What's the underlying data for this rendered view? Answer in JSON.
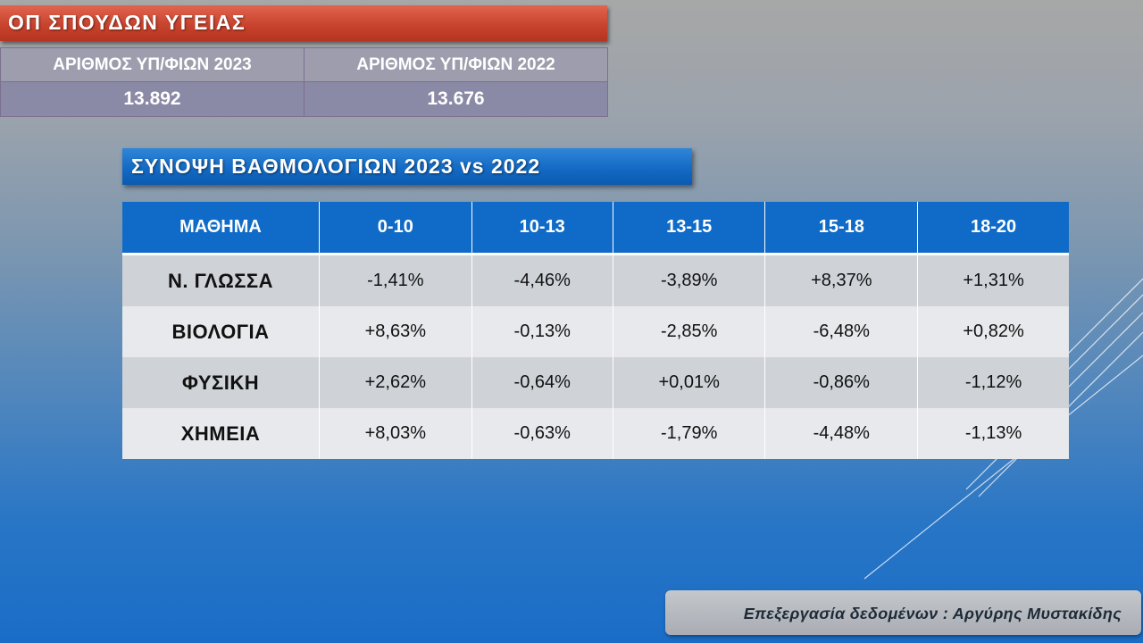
{
  "title": "ΟΠ ΣΠΟΥΔΩΝ ΥΓΕΙΑΣ",
  "stats": {
    "headers": [
      "ΑΡΙΘΜΟΣ ΥΠ/ΦΙΩΝ 2023",
      "ΑΡΙΘΜΟΣ ΥΠ/ΦΙΩΝ 2022"
    ],
    "values": [
      "13.892",
      "13.676"
    ]
  },
  "subtitle": "ΣΥΝΟΨΗ ΒΑΘΜΟΛΟΓΙΩΝ 2023 vs 2022",
  "grades": {
    "headers": [
      "ΜΑΘΗΜΑ",
      "0-10",
      "10-13",
      "13-15",
      "15-18",
      "18-20"
    ],
    "rows": [
      {
        "subject": "Ν. ΓΛΩΣΣΑ",
        "values": [
          "-1,41%",
          "-4,46%",
          "-3,89%",
          "+8,37%",
          "+1,31%"
        ]
      },
      {
        "subject": "ΒΙΟΛΟΓΙΑ",
        "values": [
          "+8,63%",
          "-0,13%",
          "-2,85%",
          "-6,48%",
          "+0,82%"
        ]
      },
      {
        "subject": "ΦΥΣΙΚΗ",
        "values": [
          "+2,62%",
          "-0,64%",
          "+0,01%",
          "-0,86%",
          "-1,12%"
        ]
      },
      {
        "subject": "ΧΗΜΕΙΑ",
        "values": [
          "+8,03%",
          "-0,63%",
          "-1,79%",
          "-4,48%",
          "-1,13%"
        ]
      }
    ]
  },
  "credit": "Επεξεργασία δεδομένων : Αργύρης Μυστακίδης",
  "colors": {
    "title_bar": "#c9432e",
    "subtitle_bar": "#1268c2",
    "table_header": "#0f6bc7",
    "row_dark": "#cfd3d8",
    "row_light": "#e7e9ec"
  }
}
